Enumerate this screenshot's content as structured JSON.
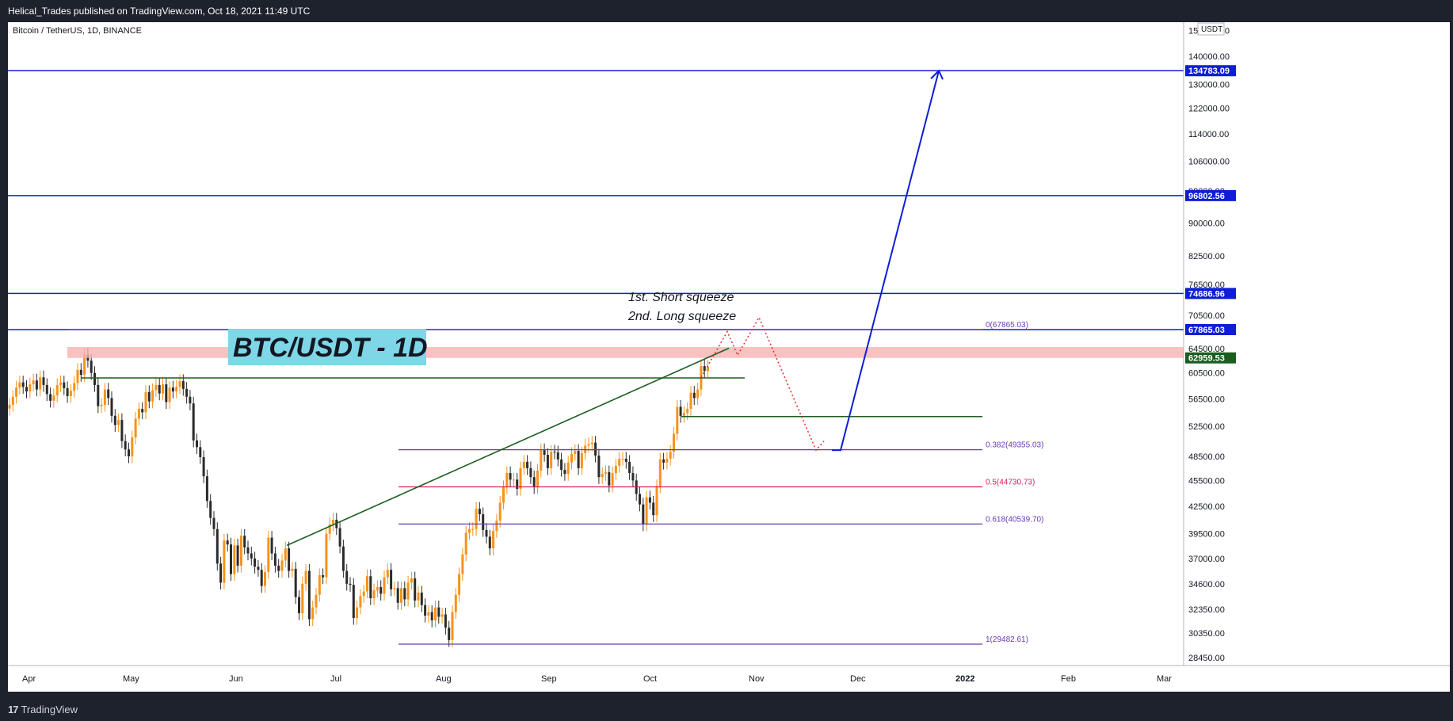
{
  "header": {
    "published": "Helical_Trades published on TradingView.com, Oct 18, 2021 11:49 UTC"
  },
  "footer": {
    "brand_mark": "17",
    "brand": "TradingView"
  },
  "chart_data": {
    "type": "candlestick",
    "symbol": "Bitcoin / TetherUS, 1D, BINANCE",
    "currency": "USDT",
    "title_box": "BTC/USDT - 1D",
    "x_labels": [
      "Apr",
      "May",
      "Jun",
      "Jul",
      "Aug",
      "Sep",
      "Oct",
      "Nov",
      "Dec",
      "2022",
      "Feb",
      "Mar"
    ],
    "y_ticks": [
      150000,
      140000,
      130000,
      122000,
      114000,
      106000,
      98000,
      90000,
      82500,
      76500,
      70500,
      64500,
      60500,
      56500,
      52500,
      48500,
      45500,
      42500,
      39500,
      37000,
      34600,
      32350,
      30350,
      28450
    ],
    "y_range": [
      27800,
      152000
    ],
    "y_scale": "log",
    "price_lines": [
      {
        "value": 134783.09,
        "label": "134783.09",
        "color": "#0d1ed6"
      },
      {
        "value": 96802.56,
        "label": "96802.56",
        "color": "#0d1ed6"
      },
      {
        "value": 74686.96,
        "label": "74686.96",
        "color": "#0d1ed6"
      },
      {
        "value": 67865.03,
        "label": "67865.03",
        "color": "#0d1ed6"
      },
      {
        "value": 62959.53,
        "label": "62959.53",
        "color": "#1b5e20"
      }
    ],
    "fib_levels": [
      {
        "ratio": "0",
        "value": 67865.03,
        "label": "0(67865.03)",
        "color": "#673ab7"
      },
      {
        "ratio": "0.382",
        "value": 49355.03,
        "label": "0.382(49355.03)",
        "color": "#673ab7"
      },
      {
        "ratio": "0.5",
        "value": 44730.73,
        "label": "0.5(44730.73)",
        "color": "#d81b60"
      },
      {
        "ratio": "0.618",
        "value": 40539.7,
        "label": "0.618(40539.70)",
        "color": "#673ab7"
      },
      {
        "ratio": "1",
        "value": 29482.61,
        "label": "1(29482.61)",
        "color": "#673ab7"
      }
    ],
    "resistance_zone": [
      62959.53,
      64800
    ],
    "annotations": [
      "1st. Short squeeze",
      "2nd. Long squeeze"
    ],
    "candles_close": [
      55600,
      56800,
      58200,
      59000,
      58300,
      57600,
      58700,
      59300,
      57900,
      59800,
      58600,
      57200,
      56200,
      57000,
      58600,
      59000,
      58100,
      56900,
      57700,
      58900,
      61000,
      60200,
      63500,
      62500,
      60500,
      58600,
      55400,
      55600,
      57900,
      56600,
      54000,
      52700,
      53400,
      50500,
      49400,
      48500,
      51000,
      53600,
      55000,
      54500,
      57500,
      56100,
      57800,
      58600,
      57300,
      58700,
      56000,
      58200,
      57600,
      58300,
      59200,
      58000,
      56800,
      55800,
      50600,
      49700,
      48400,
      46000,
      43100,
      41200,
      40000,
      36500,
      34700,
      38800,
      38400,
      35500,
      38300,
      36300,
      39300,
      38100,
      37500,
      37000,
      36200,
      35900,
      34400,
      35700,
      39100,
      37500,
      36300,
      35800,
      36800,
      38000,
      35800,
      36000,
      33400,
      32000,
      34600,
      35800,
      31500,
      32500,
      33600,
      35400,
      35200,
      39500,
      40500,
      41000,
      40100,
      38200,
      35800,
      34600,
      34500,
      31600,
      32500,
      33500,
      33900,
      35300,
      33300,
      34000,
      34300,
      33700,
      35200,
      35900,
      34100,
      34200,
      32900,
      34200,
      33200,
      34700,
      35100,
      33100,
      33800,
      32700,
      31800,
      32100,
      31400,
      32500,
      31700,
      31900,
      30800,
      29800,
      32100,
      33600,
      35500,
      37400,
      39600,
      40000,
      40000,
      42200,
      41600,
      39900,
      39200,
      38000,
      39800,
      40900,
      42900,
      44700,
      46400,
      45600,
      45600,
      44500,
      47000,
      47800,
      47000,
      45900,
      44700,
      46700,
      49300,
      48700,
      47000,
      49100,
      49000,
      48100,
      46800,
      46300,
      47700,
      48800,
      49200,
      47000,
      48900,
      49900,
      50100,
      50300,
      48600,
      45900,
      46300,
      46500,
      44900,
      46400,
      47300,
      48200,
      48200,
      47800,
      46400,
      45500,
      43900,
      42700,
      40500,
      43500,
      42900,
      41500,
      44800,
      48100,
      47700,
      48200,
      49100,
      51500,
      55300,
      54000,
      54400,
      55000,
      57400,
      56600,
      57900,
      61600,
      60800,
      61500
    ]
  }
}
